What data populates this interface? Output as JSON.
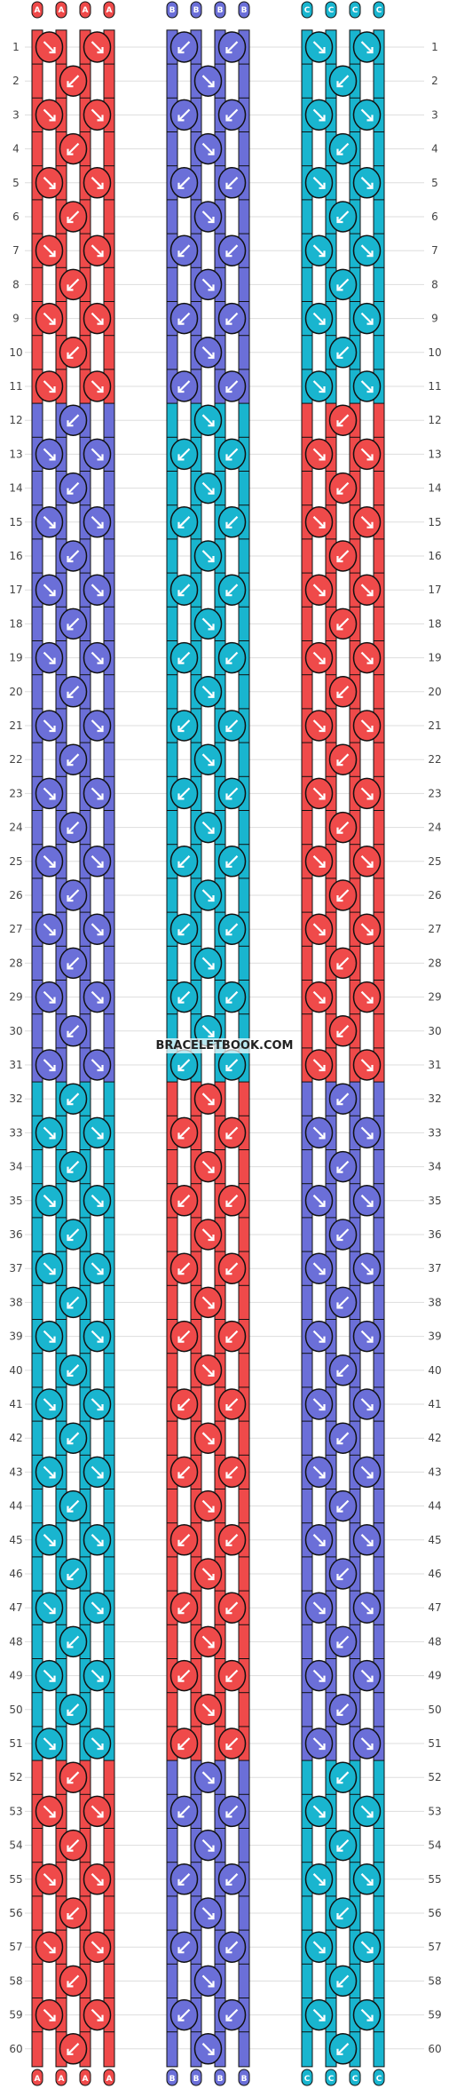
{
  "watermark": "BRACELETBOOK.COM",
  "colors": {
    "A": "#ef4a4a",
    "B": "#6b6fd8",
    "C": "#19b5cf",
    "outline": "#111111",
    "gridline": "#dddddd"
  },
  "strings": [
    "A",
    "A",
    "A",
    "A",
    "",
    "B",
    "B",
    "B",
    "B",
    "",
    "C",
    "C",
    "C",
    "C"
  ],
  "column_letters": [
    "A",
    "A",
    "A",
    "A",
    "B",
    "B",
    "B",
    "B",
    "C",
    "C",
    "C",
    "C"
  ],
  "row_numbers": [
    "1",
    "2",
    "3",
    "4",
    "5",
    "6",
    "7",
    "8",
    "9",
    "10",
    "11",
    "12",
    "13",
    "14",
    "15",
    "16",
    "17",
    "18",
    "19",
    "20",
    "21",
    "22",
    "23",
    "24",
    "25",
    "26",
    "27",
    "28",
    "29",
    "30",
    "31",
    "32",
    "33",
    "34",
    "35",
    "36",
    "37",
    "38",
    "39",
    "40",
    "41",
    "42",
    "43",
    "44",
    "45",
    "46",
    "47",
    "48",
    "49",
    "50",
    "51",
    "52",
    "53",
    "54",
    "55",
    "56",
    "57",
    "58",
    "59",
    "60"
  ],
  "bottom_letters": [
    "A",
    "A",
    "A",
    "A",
    "B",
    "B",
    "B",
    "B",
    "C",
    "C",
    "C",
    "C"
  ],
  "knot_icons": [
    "arrow-down-left-icon",
    "arrow-down-right-icon"
  ]
}
